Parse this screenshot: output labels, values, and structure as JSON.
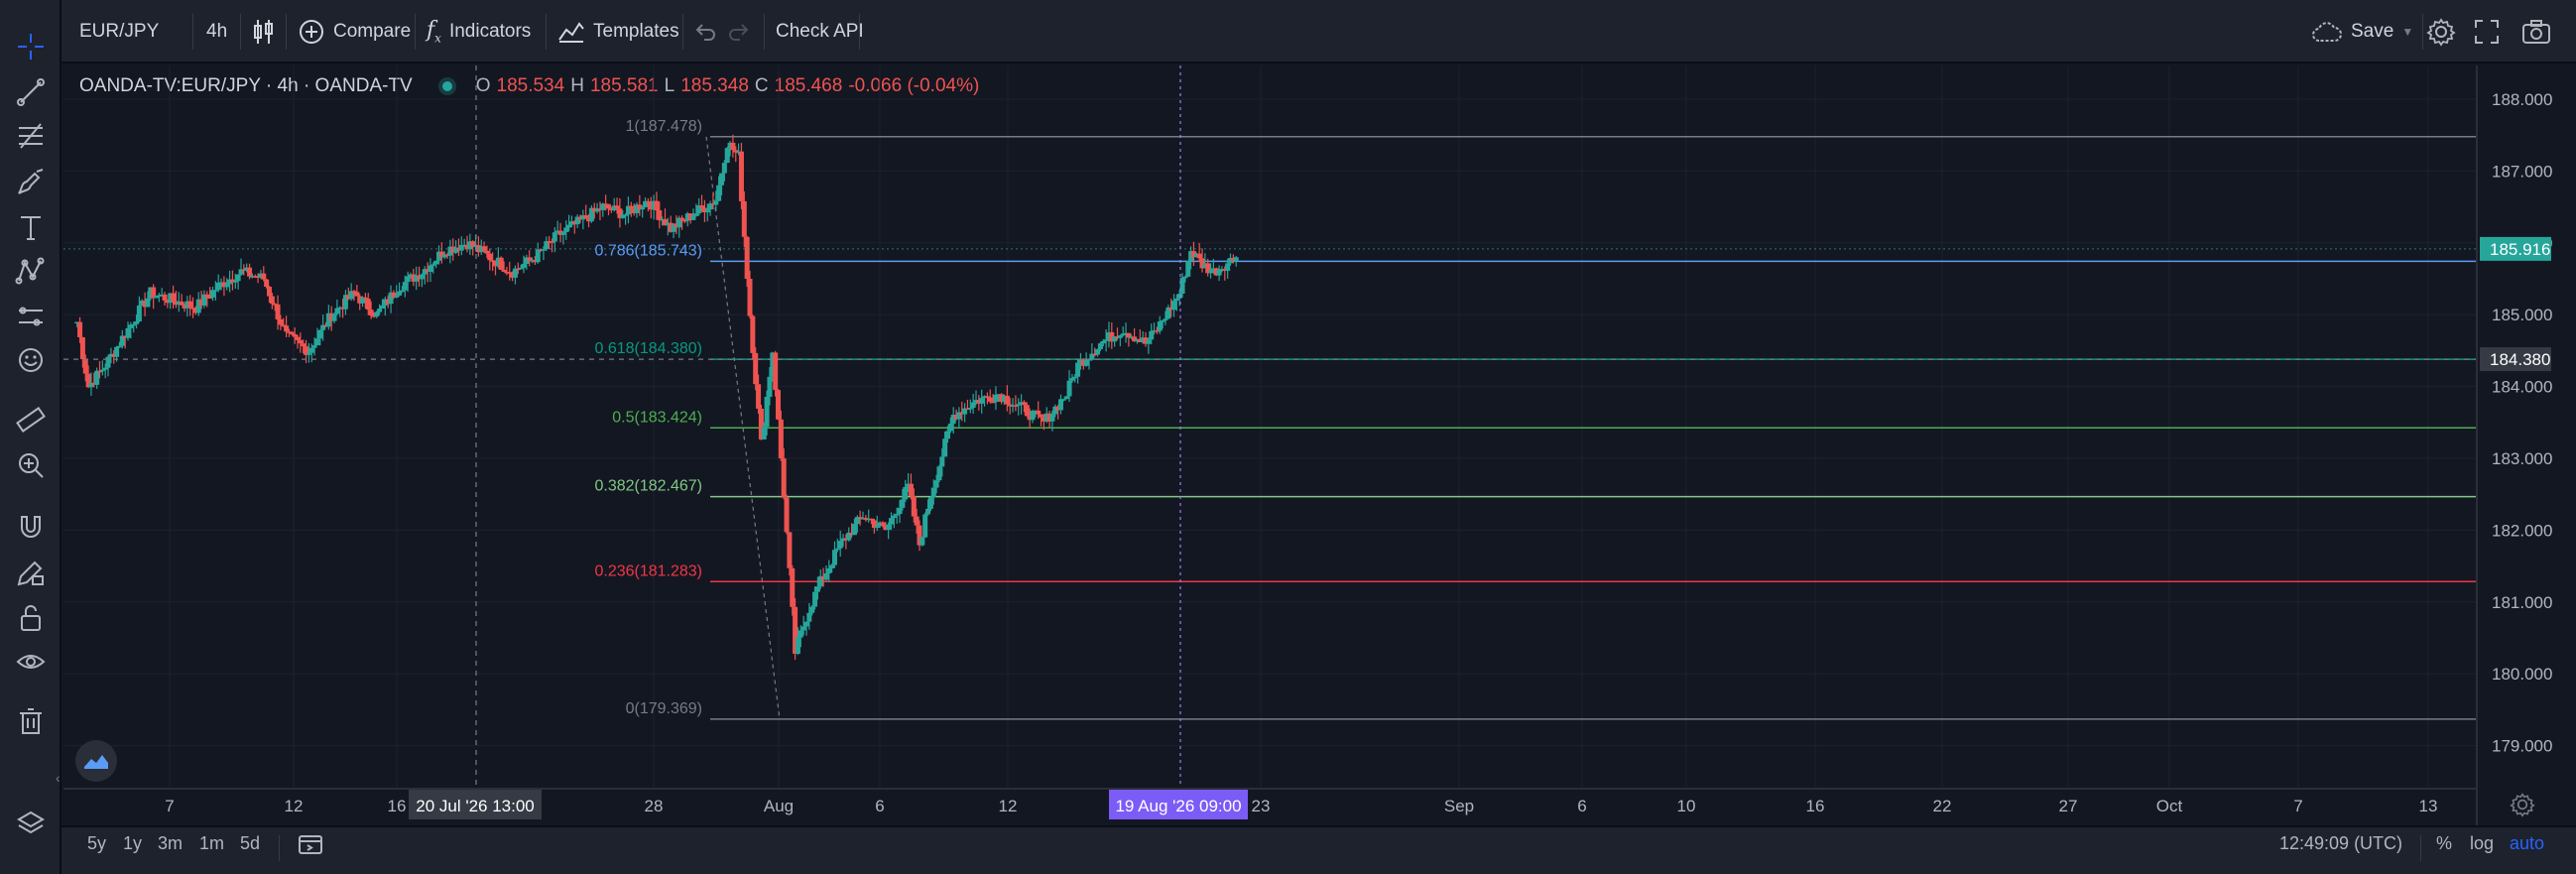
{
  "header": {
    "symbol": "EUR/JPY",
    "interval": "4h",
    "compare_label": "Compare",
    "indicators_label": "Indicators",
    "templates_label": "Templates",
    "check_api_label": "Check API",
    "save_label": "Save"
  },
  "legend": {
    "title": "OANDA-TV:EUR/JPY · 4h · OANDA-TV",
    "o_key": "O",
    "o_val": "185.534",
    "h_key": "H",
    "h_val": "185.581",
    "l_key": "L",
    "l_val": "185.348",
    "c_key": "C",
    "c_val": "185.468",
    "change": "-0.066 (-0.04%)"
  },
  "chart": {
    "price_labels": [
      "188.000",
      "187.000",
      "186.000",
      "185.000",
      "184.000",
      "183.000",
      "182.000",
      "181.000",
      "180.000",
      "179.000"
    ],
    "price_values": [
      188,
      187,
      186,
      185,
      184,
      183,
      182,
      181,
      180,
      179
    ],
    "current_price_label": "185.916",
    "current_price": 185.916,
    "crosshair_price_label": "184.380",
    "crosshair_price": 184.38,
    "time_labels": [
      {
        "t": "7",
        "x": 171
      },
      {
        "t": "12",
        "x": 296
      },
      {
        "t": "16",
        "x": 400
      },
      {
        "t": "28",
        "x": 659
      },
      {
        "t": "Aug",
        "x": 785
      },
      {
        "t": "6",
        "x": 887
      },
      {
        "t": "12",
        "x": 1016
      },
      {
        "t": "23",
        "x": 1271
      },
      {
        "t": "Sep",
        "x": 1471
      },
      {
        "t": "6",
        "x": 1595
      },
      {
        "t": "10",
        "x": 1700
      },
      {
        "t": "16",
        "x": 1830
      },
      {
        "t": "22",
        "x": 1958
      },
      {
        "t": "27",
        "x": 2085
      },
      {
        "t": "Oct",
        "x": 2187
      },
      {
        "t": "7",
        "x": 2317
      },
      {
        "t": "13",
        "x": 2448
      }
    ],
    "crosshair_time_1": "20 Jul '26   13:00",
    "crosshair_time_2": "19 Aug '26   09:00",
    "fib_levels": [
      {
        "label": "1(187.478)",
        "price": 187.478,
        "color": "#787b86"
      },
      {
        "label": "0.786(185.743)",
        "price": 185.743,
        "color": "#5b9cf6"
      },
      {
        "label": "0.618(184.380)",
        "price": 184.38,
        "color": "#089981"
      },
      {
        "label": "0.5(183.424)",
        "price": 183.424,
        "color": "#4caf50"
      },
      {
        "label": "0.382(182.467)",
        "price": 182.467,
        "color": "#81c784"
      },
      {
        "label": "0.236(181.283)",
        "price": 181.283,
        "color": "#f23645"
      },
      {
        "label": "0(179.369)",
        "price": 179.369,
        "color": "#787b86"
      }
    ]
  },
  "bottombar": {
    "ranges": [
      "5y",
      "1y",
      "3m",
      "1m",
      "5d"
    ],
    "clock": "12:49:09 (UTC)",
    "percent_label": "%",
    "log_label": "log",
    "auto_label": "auto"
  },
  "colors": {
    "up": "#26a69a",
    "down": "#ef5350",
    "accent": "#2962ff",
    "crosshair_label_bg": "#7b5cf6"
  },
  "chart_data": {
    "type": "candlestick",
    "title": "",
    "xlabel": "",
    "ylabel": "",
    "ylim": [
      178.6,
      188.4
    ],
    "series": [
      {
        "close_points": [
          [
            2,
            184.9
          ],
          [
            6,
            184.0
          ],
          [
            12,
            184.3
          ],
          [
            20,
            184.8
          ],
          [
            28,
            185.3
          ],
          [
            36,
            185.2
          ],
          [
            44,
            185.1
          ],
          [
            52,
            185.4
          ],
          [
            60,
            185.6
          ],
          [
            68,
            185.5
          ],
          [
            76,
            184.7
          ],
          [
            84,
            184.5
          ],
          [
            92,
            185.0
          ],
          [
            100,
            185.3
          ],
          [
            108,
            185.0
          ],
          [
            116,
            185.4
          ],
          [
            124,
            185.6
          ],
          [
            132,
            185.9
          ],
          [
            140,
            186.0
          ],
          [
            148,
            185.8
          ],
          [
            156,
            185.6
          ],
          [
            164,
            185.8
          ],
          [
            172,
            186.1
          ],
          [
            180,
            186.3
          ],
          [
            188,
            186.5
          ],
          [
            196,
            186.4
          ],
          [
            204,
            186.6
          ],
          [
            212,
            186.2
          ],
          [
            220,
            186.4
          ],
          [
            228,
            186.6
          ],
          [
            232,
            187.4
          ],
          [
            236,
            187.2
          ],
          [
            240,
            185.0
          ],
          [
            244,
            183.2
          ],
          [
            248,
            184.5
          ],
          [
            252,
            182.5
          ],
          [
            256,
            180.3
          ],
          [
            260,
            180.8
          ],
          [
            264,
            181.2
          ],
          [
            272,
            181.8
          ],
          [
            280,
            182.2
          ],
          [
            288,
            182.0
          ],
          [
            296,
            182.6
          ],
          [
            300,
            181.8
          ],
          [
            304,
            182.5
          ],
          [
            312,
            183.6
          ],
          [
            320,
            183.8
          ],
          [
            328,
            183.9
          ],
          [
            336,
            183.7
          ],
          [
            344,
            183.5
          ],
          [
            352,
            183.9
          ],
          [
            356,
            184.3
          ],
          [
            364,
            184.6
          ],
          [
            372,
            184.8
          ],
          [
            380,
            184.6
          ],
          [
            384,
            184.8
          ],
          [
            392,
            185.3
          ],
          [
            396,
            185.9
          ],
          [
            400,
            185.7
          ],
          [
            404,
            185.6
          ],
          [
            408,
            185.7
          ],
          [
            412,
            185.8
          ]
        ]
      }
    ]
  }
}
